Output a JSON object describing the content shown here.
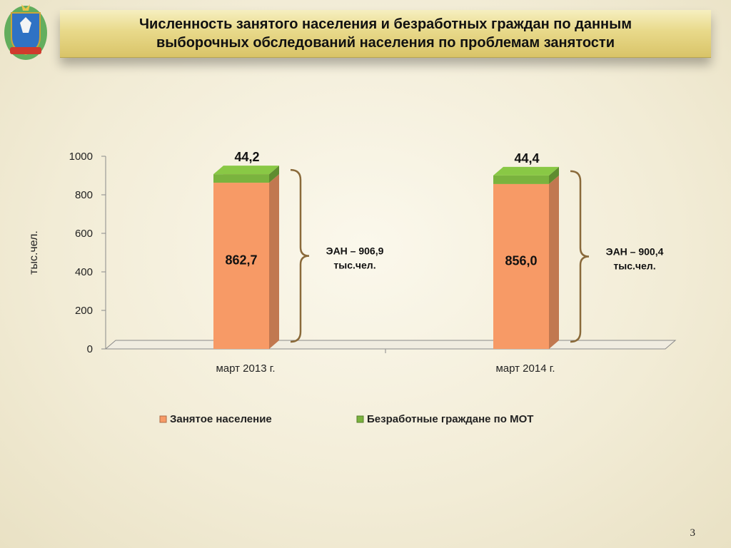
{
  "slide": {
    "title": "Численность занятого населения и безработных граждан по данным\nвыборочных обследований населения по проблемам занятости",
    "page_number": "3"
  },
  "emblem": {
    "icon": "coat-of-arms-icon",
    "colors": {
      "shield": "#2f72c4",
      "wreath": "#4aa34a",
      "ribbon": "#d03a2d"
    }
  },
  "chart_data": {
    "type": "bar",
    "stacked": true,
    "categories": [
      "март 2013 г.",
      "март 2014 г."
    ],
    "series": [
      {
        "name": "Занятое население",
        "values": [
          862.7,
          856.0
        ],
        "labels": [
          "862,7",
          "856,0"
        ],
        "color": "#f79a66"
      },
      {
        "name": "Безработные граждане по МОТ",
        "values": [
          44.2,
          44.4
        ],
        "labels": [
          "44,2",
          "44,4"
        ],
        "color": "#7ab33e"
      }
    ],
    "ylabel": "тыс.чел.",
    "ylim": [
      0,
      1000
    ],
    "yticks": [
      0,
      200,
      400,
      600,
      800,
      1000
    ],
    "grid": false,
    "legend": "bottom",
    "annotations": [
      {
        "category": "март 2013 г.",
        "lines": [
          "ЭАН – 906,9",
          "тыс.чел."
        ]
      },
      {
        "category": "март 2014 г.",
        "lines": [
          "ЭАН – 900,4",
          "тыс.чел."
        ]
      }
    ]
  }
}
